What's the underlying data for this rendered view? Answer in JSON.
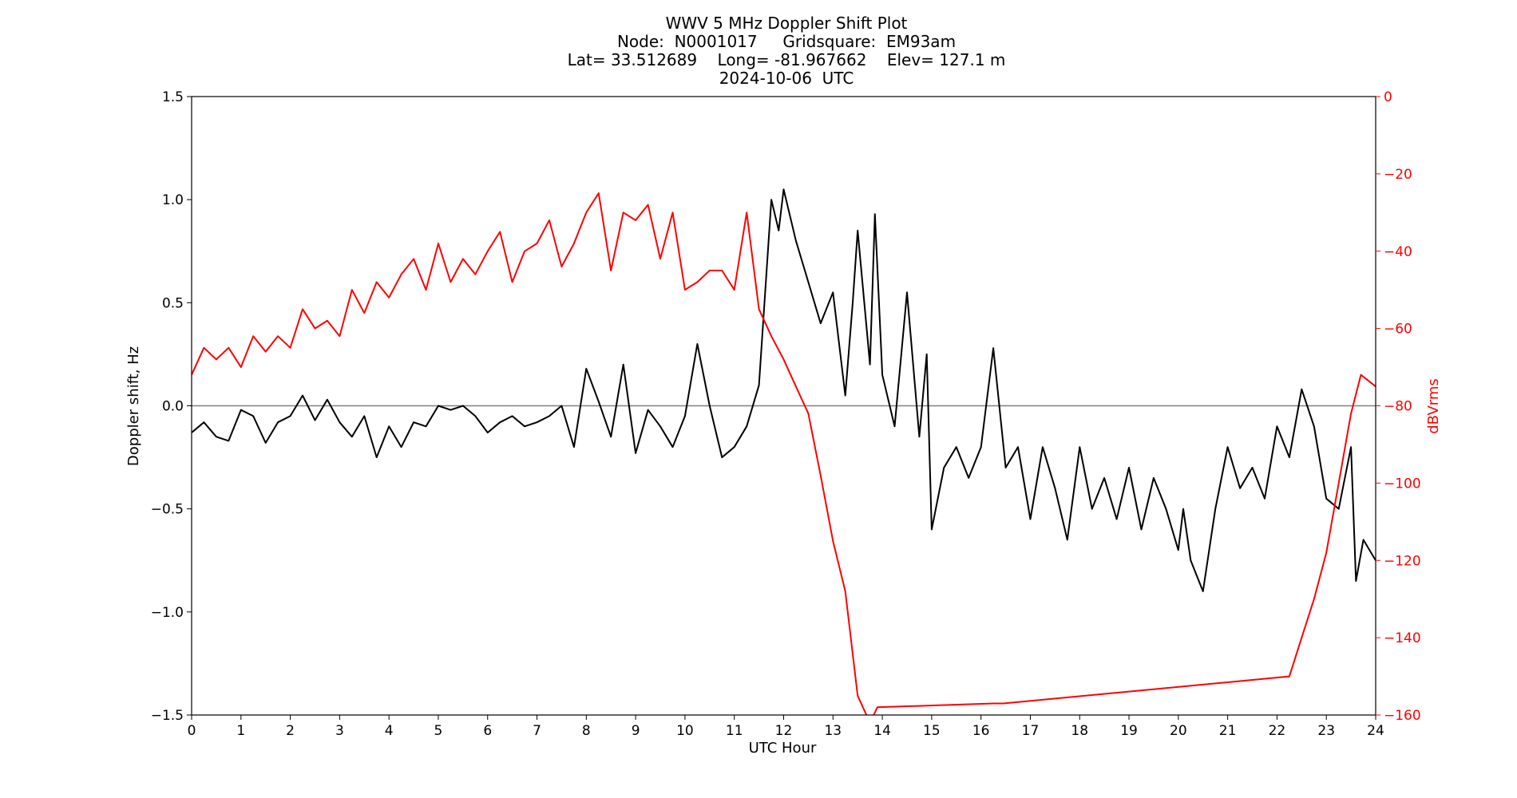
{
  "chart_data": {
    "type": "line",
    "title_lines": [
      "WWV 5 MHz Doppler Shift Plot",
      "Node:  N0001017     Gridsquare:  EM93am",
      "Lat= 33.512689    Long= -81.967662    Elev= 127.1 m",
      "2024-10-06  UTC"
    ],
    "xlabel": "UTC Hour",
    "ylabel_left": "Doppler shift, Hz",
    "ylabel_right": "dBVrms",
    "xlim": [
      0,
      24
    ],
    "ylim_left": [
      -1.5,
      1.5
    ],
    "ylim_right": [
      -160,
      0
    ],
    "xticks": [
      "0",
      "1",
      "2",
      "3",
      "4",
      "5",
      "6",
      "7",
      "8",
      "9",
      "10",
      "11",
      "12",
      "13",
      "14",
      "15",
      "16",
      "17",
      "18",
      "19",
      "20",
      "21",
      "22",
      "23",
      "24"
    ],
    "yticks_left": [
      "1.5",
      "1.0",
      "0.5",
      "0.0",
      "−0.5",
      "−1.0",
      "−1.5"
    ],
    "yticks_left_values": [
      1.5,
      1.0,
      0.5,
      0.0,
      -0.5,
      -1.0,
      -1.5
    ],
    "yticks_right": [
      "0",
      "−20",
      "−40",
      "−60",
      "−80",
      "−100",
      "−120",
      "−140",
      "−160"
    ],
    "yticks_right_values": [
      0,
      -20,
      -40,
      -60,
      -80,
      -100,
      -120,
      -140,
      -160
    ],
    "zero_line": 0.0,
    "grid": false,
    "colors": {
      "doppler": "#000000",
      "power": "#ff0000",
      "zero_line": "#808080",
      "right_axis": "#ff0000"
    },
    "series": [
      {
        "axis": "left",
        "x": [
          0,
          0.25,
          0.5,
          0.75,
          1.0,
          1.25,
          1.5,
          1.75,
          2.0,
          2.25,
          2.5,
          2.75,
          3.0,
          3.25,
          3.5,
          3.75,
          4.0,
          4.25,
          4.5,
          4.75,
          5.0,
          5.25,
          5.5,
          5.75,
          6.0,
          6.25,
          6.5,
          6.75,
          7.0,
          7.25,
          7.5,
          7.75,
          8.0,
          8.25,
          8.5,
          8.75,
          9.0,
          9.25,
          9.5,
          9.75,
          10.0,
          10.25,
          10.5,
          10.75,
          11.0,
          11.25,
          11.5,
          11.75,
          11.9,
          12.0,
          12.25,
          12.5,
          12.75,
          13.0,
          13.25,
          13.4,
          13.5,
          13.75,
          13.85,
          14.0,
          14.25,
          14.5,
          14.75,
          14.9,
          15.0,
          15.25,
          15.5,
          15.75,
          16.0,
          16.25,
          16.5,
          16.75,
          17.0,
          17.25,
          17.5,
          17.75,
          18.0,
          18.25,
          18.5,
          18.75,
          19.0,
          19.25,
          19.5,
          19.75,
          20.0,
          20.1,
          20.25,
          20.5,
          20.75,
          21.0,
          21.25,
          21.5,
          21.75,
          22.0,
          22.25,
          22.5,
          22.75,
          23.0,
          23.25,
          23.5,
          23.6,
          23.75,
          24.0
        ],
        "y": [
          -0.13,
          -0.08,
          -0.15,
          -0.17,
          -0.02,
          -0.05,
          -0.18,
          -0.08,
          -0.05,
          0.05,
          -0.07,
          0.03,
          -0.08,
          -0.15,
          -0.05,
          -0.25,
          -0.1,
          -0.2,
          -0.08,
          -0.1,
          0.0,
          -0.02,
          0.0,
          -0.05,
          -0.13,
          -0.08,
          -0.05,
          -0.1,
          -0.08,
          -0.05,
          0.0,
          -0.2,
          0.18,
          0.02,
          -0.15,
          0.2,
          -0.23,
          -0.02,
          -0.1,
          -0.2,
          -0.05,
          0.3,
          0.0,
          -0.25,
          -0.2,
          -0.1,
          0.1,
          1.0,
          0.85,
          1.05,
          0.8,
          0.6,
          0.4,
          0.55,
          0.05,
          0.5,
          0.85,
          0.2,
          0.93,
          0.15,
          -0.1,
          0.55,
          -0.15,
          0.25,
          -0.6,
          -0.3,
          -0.2,
          -0.35,
          -0.2,
          0.28,
          -0.3,
          -0.2,
          -0.55,
          -0.2,
          -0.4,
          -0.65,
          -0.2,
          -0.5,
          -0.35,
          -0.55,
          -0.3,
          -0.6,
          -0.35,
          -0.5,
          -0.7,
          -0.5,
          -0.75,
          -0.9,
          -0.5,
          -0.2,
          -0.4,
          -0.3,
          -0.45,
          -0.1,
          -0.25,
          0.08,
          -0.1,
          -0.45,
          -0.5,
          -0.2,
          -0.85,
          -0.65,
          -0.75
        ]
      },
      {
        "axis": "right",
        "x": [
          0,
          0.25,
          0.5,
          0.75,
          1.0,
          1.25,
          1.5,
          1.75,
          2.0,
          2.25,
          2.5,
          2.75,
          3.0,
          3.25,
          3.5,
          3.75,
          4.0,
          4.25,
          4.5,
          4.75,
          5.0,
          5.25,
          5.5,
          5.75,
          6.0,
          6.25,
          6.5,
          6.75,
          7.0,
          7.25,
          7.5,
          7.75,
          8.0,
          8.25,
          8.5,
          8.75,
          9.0,
          9.25,
          9.5,
          9.75,
          10.0,
          10.25,
          10.5,
          10.75,
          11.0,
          11.25,
          11.5,
          11.75,
          12.0,
          12.25,
          12.5,
          12.75,
          13.0,
          13.25,
          13.5,
          13.75,
          13.9,
          16.25,
          16.45,
          22.25,
          22.5,
          22.75,
          23.0,
          23.25,
          23.5,
          23.7,
          24.0
        ],
        "y": [
          -72,
          -65,
          -68,
          -65,
          -70,
          -62,
          -66,
          -62,
          -65,
          -55,
          -60,
          -58,
          -62,
          -50,
          -56,
          -48,
          -52,
          -46,
          -42,
          -50,
          -38,
          -48,
          -42,
          -46,
          -40,
          -35,
          -48,
          -40,
          -38,
          -32,
          -44,
          -38,
          -30,
          -25,
          -45,
          -30,
          -32,
          -28,
          -42,
          -30,
          -50,
          -48,
          -45,
          -45,
          -50,
          -30,
          -55,
          -62,
          -68,
          -75,
          -82,
          -98,
          -115,
          -128,
          -155,
          -162,
          -158,
          -157,
          -157,
          -150,
          -140,
          -130,
          -118,
          -100,
          -82,
          -72,
          -75
        ]
      }
    ]
  }
}
